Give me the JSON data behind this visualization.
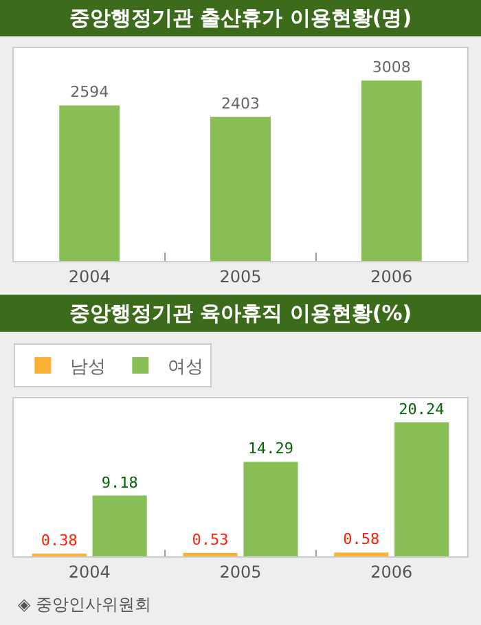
{
  "chart_data": [
    {
      "type": "bar",
      "title": "중앙행정기관 출산휴가 이용현황(명)",
      "categories": [
        "2004",
        "2005",
        "2006"
      ],
      "series": [
        {
          "color": "#88c057",
          "values": [
            2594,
            2403,
            3008
          ]
        }
      ],
      "data_labels": true,
      "legend": false
    },
    {
      "type": "bar",
      "title": "중앙행정기관 육아휴직 이용현황(%)",
      "categories": [
        "2004",
        "2005",
        "2006"
      ],
      "series": [
        {
          "name": "남성",
          "color": "#f9b233",
          "values": [
            0.38,
            0.53,
            0.58
          ]
        },
        {
          "name": "여성",
          "color": "#88c057",
          "values": [
            9.18,
            14.29,
            20.24
          ]
        }
      ],
      "data_labels": true,
      "legend": "top left",
      "annotations": [
        "◈ 중앙인사위원회"
      ]
    }
  ]
}
